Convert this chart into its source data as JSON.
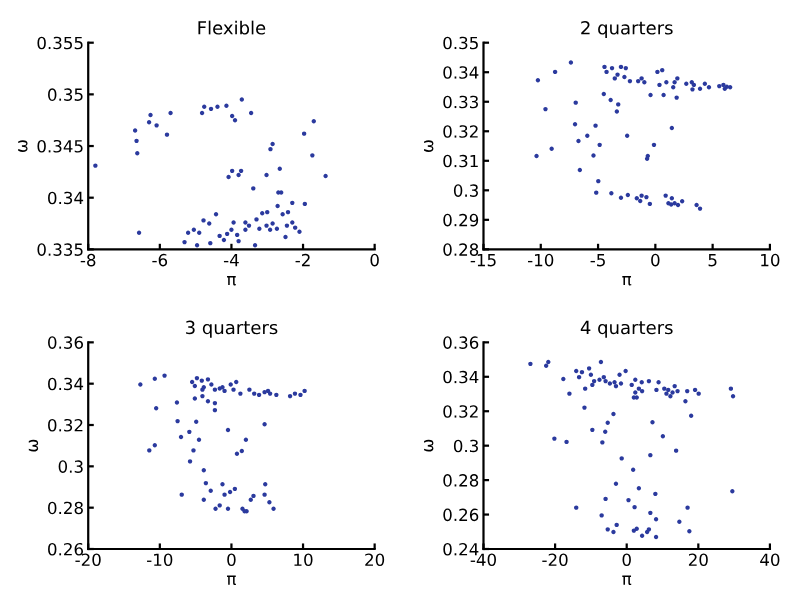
{
  "chart_data": [
    {
      "type": "scatter",
      "title": "Flexible",
      "xlabel": "π",
      "ylabel": "ω",
      "xlim": [
        -8,
        0
      ],
      "ylim": [
        0.335,
        0.355
      ],
      "xticks": [
        -8,
        -6,
        -4,
        -2,
        0
      ],
      "yticks": [
        0.335,
        0.34,
        0.345,
        0.35,
        0.355
      ],
      "marker": "circle",
      "series": [
        {
          "color": "#2b3a9e",
          "x": [
            -7.8,
            -6.69,
            -6.65,
            -6.63,
            -6.26,
            -6.3,
            -6.09,
            -5.8,
            -5.7,
            -6.58,
            -4.82,
            -4.76,
            -4.57,
            -4.39,
            -4.14,
            -3.71,
            -3.98,
            -3.9,
            -3.45,
            -1.97,
            -1.7,
            -1.74,
            -2.85,
            -2.91,
            -3.98,
            -4.08,
            -3.73,
            -3.8,
            -3.02,
            -3.39,
            -2.65,
            -2.61,
            -2.69,
            -1.37,
            -1.95,
            -2.3,
            -2.71,
            -4.78,
            -4.43,
            -4.62,
            -5.05,
            -4.9,
            -5.21,
            -5.31,
            -4.96,
            -4.59,
            -4.33,
            -4.12,
            -4.0,
            -3.84,
            -4.21,
            -3.8,
            -3.61,
            -3.51,
            -3.3,
            -3.22,
            -3.34,
            -3.14,
            -3.0,
            -3.02,
            -2.92,
            -2.73,
            -2.85,
            -2.57,
            -2.42,
            -2.3,
            -2.45,
            -2.22,
            -2.1,
            -2.49,
            -3.61,
            -3.94
          ],
          "values": [
            0.3431,
            0.3465,
            0.3455,
            0.3443,
            0.348,
            0.3473,
            0.347,
            0.3461,
            0.3482,
            0.3366,
            0.3482,
            0.3488,
            0.3486,
            0.3488,
            0.3489,
            0.3495,
            0.3479,
            0.3475,
            0.3482,
            0.3462,
            0.3474,
            0.3441,
            0.3452,
            0.3447,
            0.3426,
            0.342,
            0.3426,
            0.3422,
            0.3422,
            0.3409,
            0.3428,
            0.3405,
            0.3405,
            0.3421,
            0.3394,
            0.3395,
            0.3392,
            0.3378,
            0.3384,
            0.3375,
            0.3369,
            0.3366,
            0.3366,
            0.3357,
            0.3354,
            0.3356,
            0.3363,
            0.3365,
            0.3369,
            0.3364,
            0.3359,
            0.3358,
            0.3369,
            0.3373,
            0.3379,
            0.337,
            0.3354,
            0.3385,
            0.3386,
            0.3373,
            0.3369,
            0.337,
            0.3375,
            0.3384,
            0.3386,
            0.3376,
            0.3373,
            0.3371,
            0.3367,
            0.3362,
            0.3376,
            0.3376
          ]
        }
      ]
    },
    {
      "type": "scatter",
      "title": "2 quarters",
      "xlabel": "π",
      "ylabel": "ω",
      "xlim": [
        -15,
        10
      ],
      "ylim": [
        0.28,
        0.35
      ],
      "xticks": [
        -15,
        -10,
        -5,
        0,
        5,
        10
      ],
      "yticks": [
        0.28,
        0.29,
        0.3,
        0.31,
        0.32,
        0.33,
        0.34,
        0.35
      ],
      "marker": "circle",
      "series": [
        {
          "color": "#2b3a9e",
          "x": [
            -10.25,
            -8.75,
            -7.37,
            -9.59,
            -6.95,
            -9.05,
            -10.37,
            -7.01,
            -6.71,
            -5.94,
            -5.22,
            -5.4,
            -4.86,
            -6.59,
            -4.98,
            -5.16,
            -3.84,
            -3.0,
            -2.4,
            -1.62,
            -1.2,
            -0.78,
            -1.32,
            -0.48,
            0.9,
            1.44,
            1.38,
            1.68,
            1.98,
            2.34,
            3.6,
            3.9,
            1.14,
            -2.46,
            -0.12,
            -0.66,
            -0.72,
            1.44,
            -4.5,
            -3.9,
            -3.24,
            -3.36,
            -4.44,
            -4.26,
            -3.78,
            -3.3,
            -3.54,
            -3.0,
            -2.58,
            -2.7,
            -2.22,
            -1.5,
            -1.2,
            -0.96,
            -0.42,
            0.18,
            0.6,
            0.36,
            0.96,
            1.56,
            1.92,
            1.68,
            1.86,
            0.72,
            2.7,
            3.36,
            3.24,
            3.18,
            3.9,
            4.32,
            5.58,
            5.94,
            6.24,
            6.53,
            6.06,
            4.68
          ],
          "values": [
            0.3373,
            0.3401,
            0.3433,
            0.3275,
            0.3297,
            0.3141,
            0.3116,
            0.3224,
            0.3167,
            0.3185,
            0.3219,
            0.3118,
            0.3154,
            0.3069,
            0.3031,
            0.2992,
            0.299,
            0.2975,
            0.2984,
            0.2973,
            0.2982,
            0.2977,
            0.2964,
            0.2954,
            0.2982,
            0.2973,
            0.2952,
            0.2956,
            0.295,
            0.2963,
            0.295,
            0.2938,
            0.2956,
            0.3185,
            0.3154,
            0.3116,
            0.3107,
            0.3211,
            0.3326,
            0.3306,
            0.3291,
            0.3267,
            0.3418,
            0.3401,
            0.3414,
            0.3392,
            0.3379,
            0.3418,
            0.3414,
            0.3384,
            0.337,
            0.337,
            0.3379,
            0.3366,
            0.3323,
            0.3401,
            0.3407,
            0.3357,
            0.3366,
            0.3349,
            0.3379,
            0.3366,
            0.3314,
            0.3323,
            0.3361,
            0.3357,
            0.3342,
            0.3366,
            0.3344,
            0.3361,
            0.3353,
            0.3357,
            0.3351,
            0.3349,
            0.3344,
            0.3349
          ]
        }
      ]
    },
    {
      "type": "scatter",
      "title": "3 quarters",
      "xlabel": "π",
      "ylabel": "ω",
      "xlim": [
        -20,
        20
      ],
      "ylim": [
        0.26,
        0.36
      ],
      "xticks": [
        -20,
        -10,
        0,
        10,
        20
      ],
      "yticks": [
        0.26,
        0.28,
        0.3,
        0.32,
        0.34,
        0.36
      ],
      "marker": "circle",
      "series": [
        {
          "color": "#2b3a9e",
          "x": [
            -12.72,
            -10.7,
            -9.34,
            -10.51,
            -10.7,
            -11.47,
            -7.61,
            -7.52,
            -7.04,
            -6.94,
            -5.88,
            -4.92,
            -4.53,
            -5.3,
            -5.78,
            -3.86,
            -3.57,
            -3.86,
            -2.89,
            -2.22,
            -1.64,
            -1.25,
            -0.96,
            -0.19,
            0.48,
            -0.48,
            1.54,
            2.12,
            1.83,
            2.7,
            3.08,
            4.63,
            4.72,
            5.3,
            5.88,
            -0.48,
            0.77,
            1.45,
            2.02,
            4.63,
            -5.49,
            -4.82,
            -5.11,
            -4.14,
            -3.86,
            -3.28,
            -2.8,
            -2.31,
            -1.64,
            -1.25,
            -0.96,
            -0.1,
            0.67,
            0.29,
            1.25,
            2.51,
            3.18,
            3.86,
            4.63,
            5.11,
            5.4,
            6.27,
            8.19,
            8.87,
            9.64,
            10.22,
            -5.11,
            -4.05,
            -3.28,
            -2.31,
            -2.31,
            -4.05
          ],
          "values": [
            0.3396,
            0.3424,
            0.3439,
            0.3281,
            0.3102,
            0.3077,
            0.3309,
            0.3219,
            0.3142,
            0.2863,
            0.3167,
            0.3216,
            0.3129,
            0.3077,
            0.3024,
            0.2981,
            0.2919,
            0.2838,
            0.2882,
            0.2795,
            0.2811,
            0.2913,
            0.2863,
            0.2876,
            0.2891,
            0.2795,
            0.2795,
            0.2783,
            0.2783,
            0.2838,
            0.2857,
            0.2863,
            0.2913,
            0.2826,
            0.2795,
            0.3176,
            0.3061,
            0.3074,
            0.3129,
            0.3204,
            0.3408,
            0.3427,
            0.3389,
            0.3415,
            0.3383,
            0.3421,
            0.3396,
            0.3371,
            0.3377,
            0.3383,
            0.3365,
            0.3396,
            0.3408,
            0.3371,
            0.3352,
            0.3371,
            0.3352,
            0.3346,
            0.3359,
            0.3365,
            0.3352,
            0.3346,
            0.334,
            0.3352,
            0.3346,
            0.3365,
            0.3328,
            0.334,
            0.3315,
            0.3306,
            0.3272,
            0.3371
          ]
        }
      ]
    },
    {
      "type": "scatter",
      "title": "4 quarters",
      "xlabel": "π",
      "ylabel": "ω",
      "xlim": [
        -40,
        40
      ],
      "ylim": [
        0.24,
        0.36
      ],
      "xticks": [
        -40,
        -20,
        0,
        20,
        40
      ],
      "yticks": [
        0.24,
        0.26,
        0.28,
        0.3,
        0.32,
        0.34,
        0.36
      ],
      "marker": "circle",
      "series": [
        {
          "color": "#2b3a9e",
          "x": [
            -26.9,
            -21.9,
            -22.5,
            -17.7,
            -16.0,
            -14.1,
            -13.3,
            -12.5,
            -11.6,
            -11.8,
            -10.5,
            -10.0,
            -9.6,
            -9.1,
            -9.6,
            -20.2,
            -16.8,
            -7.2,
            -6.4,
            -7.6,
            -5.9,
            -4.7,
            -3.4,
            -3.0,
            -1.6,
            -2.0,
            -0.3,
            1.4,
            2.4,
            3.4,
            2.8,
            2.0,
            4.2,
            4.3,
            2.4,
            6.2,
            8.3,
            8.9,
            10.5,
            11.1,
            11.6,
            12.2,
            12.8,
            13.4,
            14.2,
            16.4,
            16.9,
            19.1,
            20.1,
            29.1,
            29.7,
            18.0,
            -3.7,
            -5.3,
            -6.0,
            -6.8,
            7.2,
            10.1,
            13.8,
            6.6,
            -1.4,
            1.8,
            -3.0,
            3.4,
            8.0,
            29.5,
            -5.9,
            0.5,
            2.2,
            -14.1,
            -7.0,
            6.6,
            8.2,
            17.0,
            14.7,
            -5.3,
            -3.7,
            -2.8,
            2.0,
            2.8,
            4.3,
            5.7,
            6.2,
            8.2,
            17.5
          ],
          "values": [
            0.3475,
            0.3486,
            0.3464,
            0.3387,
            0.3302,
            0.3434,
            0.3398,
            0.3427,
            0.3331,
            0.3221,
            0.3449,
            0.3412,
            0.3353,
            0.3375,
            0.3092,
            0.3041,
            0.3022,
            0.3486,
            0.3398,
            0.3383,
            0.3375,
            0.3361,
            0.3368,
            0.3346,
            0.3361,
            0.3412,
            0.3434,
            0.3353,
            0.3383,
            0.3331,
            0.328,
            0.328,
            0.3368,
            0.3317,
            0.3309,
            0.3375,
            0.3324,
            0.3368,
            0.3331,
            0.3302,
            0.3324,
            0.3287,
            0.3309,
            0.3346,
            0.3317,
            0.3258,
            0.3317,
            0.3324,
            0.3302,
            0.3331,
            0.3287,
            0.3174,
            0.3184,
            0.3133,
            0.3081,
            0.3019,
            0.3136,
            0.3055,
            0.2971,
            0.2945,
            0.2926,
            0.286,
            0.2779,
            0.2753,
            0.272,
            0.2735,
            0.2691,
            0.2684,
            0.2643,
            0.264,
            0.2595,
            0.261,
            0.2573,
            0.264,
            0.2558,
            0.2514,
            0.2499,
            0.254,
            0.2507,
            0.2518,
            0.2477,
            0.2499,
            0.2514,
            0.247,
            0.2503
          ]
        }
      ]
    }
  ]
}
